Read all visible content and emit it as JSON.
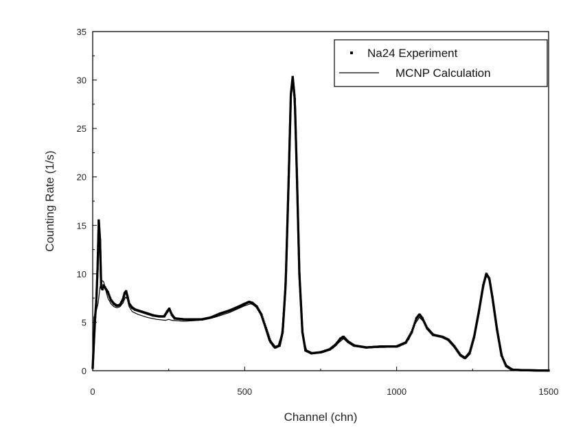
{
  "chart_data": {
    "type": "scatter",
    "title": "",
    "xlabel": "Channel (chn)",
    "ylabel": "Counting Rate (1/s)",
    "xlim": [
      0,
      1500
    ],
    "ylim": [
      0,
      35
    ],
    "x_ticks": [
      0,
      500,
      1000,
      1500
    ],
    "y_ticks": [
      0,
      5,
      10,
      15,
      20,
      25,
      30,
      35
    ],
    "legend_position": "top-right",
    "series": [
      {
        "name": "Na24 Experiment",
        "style": "dots",
        "color": "#000000",
        "points": [
          [
            0,
            0.3
          ],
          [
            4,
            3.0
          ],
          [
            8,
            5.5
          ],
          [
            12,
            7.2
          ],
          [
            16,
            10.5
          ],
          [
            20,
            15.5
          ],
          [
            24,
            13.5
          ],
          [
            28,
            8.6
          ],
          [
            32,
            8.4
          ],
          [
            36,
            8.8
          ],
          [
            40,
            8.6
          ],
          [
            50,
            8.1
          ],
          [
            60,
            7.3
          ],
          [
            70,
            6.9
          ],
          [
            80,
            6.7
          ],
          [
            90,
            6.8
          ],
          [
            100,
            7.4
          ],
          [
            105,
            8.0
          ],
          [
            110,
            8.2
          ],
          [
            115,
            7.6
          ],
          [
            120,
            6.9
          ],
          [
            130,
            6.5
          ],
          [
            140,
            6.3
          ],
          [
            160,
            6.1
          ],
          [
            180,
            5.9
          ],
          [
            200,
            5.7
          ],
          [
            220,
            5.6
          ],
          [
            235,
            5.6
          ],
          [
            245,
            6.1
          ],
          [
            252,
            6.4
          ],
          [
            260,
            5.8
          ],
          [
            270,
            5.4
          ],
          [
            300,
            5.3
          ],
          [
            330,
            5.3
          ],
          [
            360,
            5.3
          ],
          [
            390,
            5.5
          ],
          [
            420,
            5.9
          ],
          [
            450,
            6.2
          ],
          [
            480,
            6.6
          ],
          [
            500,
            6.9
          ],
          [
            515,
            7.1
          ],
          [
            525,
            7.0
          ],
          [
            540,
            6.6
          ],
          [
            555,
            5.8
          ],
          [
            570,
            4.4
          ],
          [
            585,
            3.0
          ],
          [
            600,
            2.4
          ],
          [
            615,
            2.6
          ],
          [
            625,
            4.0
          ],
          [
            635,
            9.0
          ],
          [
            645,
            20.0
          ],
          [
            652,
            28.5
          ],
          [
            658,
            30.3
          ],
          [
            665,
            28.0
          ],
          [
            672,
            20.0
          ],
          [
            680,
            10.0
          ],
          [
            690,
            4.0
          ],
          [
            700,
            2.1
          ],
          [
            720,
            1.8
          ],
          [
            750,
            1.9
          ],
          [
            780,
            2.2
          ],
          [
            800,
            2.7
          ],
          [
            815,
            3.3
          ],
          [
            825,
            3.5
          ],
          [
            840,
            3.0
          ],
          [
            860,
            2.6
          ],
          [
            900,
            2.4
          ],
          [
            950,
            2.5
          ],
          [
            1000,
            2.5
          ],
          [
            1030,
            2.9
          ],
          [
            1050,
            4.0
          ],
          [
            1065,
            5.4
          ],
          [
            1075,
            5.8
          ],
          [
            1085,
            5.4
          ],
          [
            1100,
            4.4
          ],
          [
            1120,
            3.7
          ],
          [
            1150,
            3.5
          ],
          [
            1170,
            3.2
          ],
          [
            1190,
            2.5
          ],
          [
            1210,
            1.6
          ],
          [
            1225,
            1.3
          ],
          [
            1240,
            1.8
          ],
          [
            1255,
            3.5
          ],
          [
            1270,
            6.0
          ],
          [
            1285,
            8.8
          ],
          [
            1295,
            10.0
          ],
          [
            1305,
            9.5
          ],
          [
            1315,
            7.6
          ],
          [
            1330,
            4.3
          ],
          [
            1345,
            1.6
          ],
          [
            1360,
            0.5
          ],
          [
            1380,
            0.1
          ],
          [
            1420,
            0.05
          ],
          [
            1460,
            0.03
          ],
          [
            1500,
            0.02
          ]
        ]
      },
      {
        "name": "MCNP Calculation",
        "style": "line",
        "color": "#000000",
        "points": [
          [
            0,
            0.0
          ],
          [
            4,
            5.5
          ],
          [
            8,
            6.0
          ],
          [
            12,
            6.2
          ],
          [
            18,
            7.0
          ],
          [
            24,
            8.6
          ],
          [
            30,
            9.3
          ],
          [
            36,
            9.2
          ],
          [
            42,
            8.4
          ],
          [
            50,
            7.5
          ],
          [
            60,
            6.9
          ],
          [
            70,
            6.6
          ],
          [
            80,
            6.5
          ],
          [
            90,
            6.6
          ],
          [
            100,
            7.0
          ],
          [
            108,
            7.6
          ],
          [
            114,
            7.4
          ],
          [
            120,
            6.6
          ],
          [
            130,
            6.1
          ],
          [
            150,
            5.8
          ],
          [
            180,
            5.5
          ],
          [
            210,
            5.3
          ],
          [
            240,
            5.2
          ],
          [
            250,
            5.3
          ],
          [
            260,
            5.2
          ],
          [
            300,
            5.1
          ],
          [
            350,
            5.2
          ],
          [
            400,
            5.5
          ],
          [
            450,
            6.0
          ],
          [
            500,
            6.7
          ],
          [
            520,
            6.9
          ],
          [
            535,
            6.7
          ],
          [
            550,
            6.0
          ],
          [
            565,
            4.6
          ],
          [
            580,
            3.1
          ],
          [
            595,
            2.4
          ],
          [
            610,
            2.6
          ],
          [
            622,
            3.8
          ],
          [
            635,
            9.5
          ],
          [
            645,
            20.5
          ],
          [
            652,
            28.0
          ],
          [
            658,
            29.5
          ],
          [
            665,
            27.5
          ],
          [
            672,
            19.5
          ],
          [
            682,
            8.5
          ],
          [
            692,
            3.5
          ],
          [
            705,
            2.0
          ],
          [
            730,
            1.8
          ],
          [
            760,
            1.9
          ],
          [
            790,
            2.3
          ],
          [
            810,
            2.9
          ],
          [
            825,
            3.3
          ],
          [
            840,
            2.9
          ],
          [
            860,
            2.5
          ],
          [
            900,
            2.4
          ],
          [
            960,
            2.4
          ],
          [
            1010,
            2.5
          ],
          [
            1040,
            3.2
          ],
          [
            1060,
            4.8
          ],
          [
            1075,
            5.5
          ],
          [
            1090,
            5.0
          ],
          [
            1110,
            4.0
          ],
          [
            1140,
            3.5
          ],
          [
            1165,
            3.3
          ],
          [
            1185,
            2.6
          ],
          [
            1205,
            1.8
          ],
          [
            1225,
            1.4
          ],
          [
            1240,
            2.0
          ],
          [
            1258,
            4.0
          ],
          [
            1275,
            7.0
          ],
          [
            1290,
            9.4
          ],
          [
            1298,
            9.8
          ],
          [
            1308,
            9.1
          ],
          [
            1320,
            6.8
          ],
          [
            1335,
            3.6
          ],
          [
            1350,
            1.3
          ],
          [
            1365,
            0.4
          ],
          [
            1390,
            0.1
          ],
          [
            1500,
            0.0
          ]
        ]
      }
    ]
  }
}
